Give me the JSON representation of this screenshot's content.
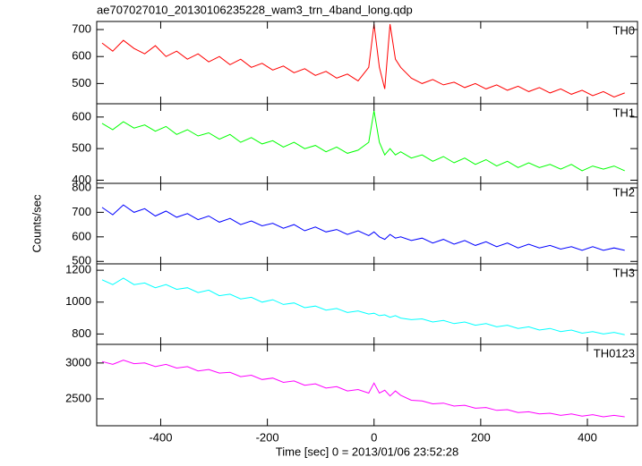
{
  "y_label": "Counts/sec",
  "x_label": "Time [sec] 0 = 2013/01/06 23:52:28",
  "chart_data": [
    {
      "type": "line",
      "title": "ae707027010_20130106235228_wam3_trn_4band_long.qdp",
      "xlim": [
        -520,
        494
      ],
      "ylim": [
        425,
        730
      ],
      "yticks": [
        500,
        600,
        700
      ],
      "x": [
        -510,
        -490,
        -470,
        -450,
        -430,
        -410,
        -390,
        -370,
        -350,
        -330,
        -310,
        -290,
        -270,
        -250,
        -230,
        -210,
        -190,
        -170,
        -150,
        -130,
        -110,
        -90,
        -70,
        -50,
        -30,
        -10,
        0,
        10,
        20,
        30,
        40,
        50,
        70,
        90,
        110,
        130,
        150,
        170,
        190,
        210,
        230,
        250,
        270,
        290,
        310,
        330,
        350,
        370,
        390,
        410,
        430,
        450,
        470
      ],
      "series": [
        {
          "name": "TH0",
          "color": "#ff0000",
          "values": [
            650,
            620,
            660,
            630,
            610,
            640,
            600,
            620,
            590,
            610,
            580,
            600,
            570,
            590,
            560,
            575,
            550,
            565,
            540,
            555,
            530,
            545,
            520,
            535,
            510,
            560,
            720,
            560,
            480,
            720,
            590,
            560,
            520,
            500,
            515,
            495,
            505,
            485,
            500,
            480,
            495,
            475,
            490,
            470,
            485,
            465,
            480,
            460,
            475,
            455,
            470,
            450,
            465
          ]
        }
      ]
    },
    {
      "type": "line",
      "xlim": [
        -520,
        494
      ],
      "ylim": [
        390,
        642
      ],
      "yticks": [
        400,
        500,
        600
      ],
      "x": [
        -510,
        -490,
        -470,
        -450,
        -430,
        -410,
        -390,
        -370,
        -350,
        -330,
        -310,
        -290,
        -270,
        -250,
        -230,
        -210,
        -190,
        -170,
        -150,
        -130,
        -110,
        -90,
        -70,
        -50,
        -30,
        -10,
        0,
        10,
        20,
        30,
        40,
        50,
        70,
        90,
        110,
        130,
        150,
        170,
        190,
        210,
        230,
        250,
        270,
        290,
        310,
        330,
        350,
        370,
        390,
        410,
        430,
        450,
        470
      ],
      "series": [
        {
          "name": "TH1",
          "color": "#00ff00",
          "values": [
            580,
            560,
            585,
            565,
            575,
            555,
            570,
            545,
            560,
            540,
            550,
            530,
            545,
            520,
            535,
            515,
            525,
            505,
            520,
            500,
            510,
            490,
            505,
            485,
            495,
            520,
            620,
            520,
            480,
            500,
            480,
            490,
            470,
            480,
            460,
            475,
            455,
            470,
            450,
            465,
            445,
            460,
            440,
            455,
            440,
            450,
            435,
            450,
            430,
            445,
            435,
            445,
            430
          ]
        }
      ]
    },
    {
      "type": "line",
      "xlim": [
        -520,
        494
      ],
      "ylim": [
        490,
        818
      ],
      "yticks": [
        500,
        600,
        700,
        800
      ],
      "x": [
        -510,
        -490,
        -470,
        -450,
        -430,
        -410,
        -390,
        -370,
        -350,
        -330,
        -310,
        -290,
        -270,
        -250,
        -230,
        -210,
        -190,
        -170,
        -150,
        -130,
        -110,
        -90,
        -70,
        -50,
        -30,
        -10,
        0,
        10,
        20,
        30,
        40,
        50,
        70,
        90,
        110,
        130,
        150,
        170,
        190,
        210,
        230,
        250,
        270,
        290,
        310,
        330,
        350,
        370,
        390,
        410,
        430,
        450,
        470
      ],
      "series": [
        {
          "name": "TH2",
          "color": "#0000ff",
          "values": [
            720,
            690,
            730,
            700,
            715,
            685,
            705,
            680,
            695,
            670,
            685,
            660,
            675,
            650,
            665,
            645,
            655,
            635,
            650,
            625,
            640,
            620,
            630,
            610,
            625,
            605,
            620,
            600,
            590,
            610,
            595,
            600,
            585,
            595,
            575,
            590,
            570,
            585,
            565,
            580,
            560,
            575,
            555,
            570,
            555,
            565,
            550,
            560,
            545,
            560,
            545,
            555,
            545
          ]
        }
      ]
    },
    {
      "type": "line",
      "xlim": [
        -520,
        494
      ],
      "ylim": [
        735,
        1240
      ],
      "yticks": [
        800,
        1000,
        1200
      ],
      "x": [
        -510,
        -490,
        -470,
        -450,
        -430,
        -410,
        -390,
        -370,
        -350,
        -330,
        -310,
        -290,
        -270,
        -250,
        -230,
        -210,
        -190,
        -170,
        -150,
        -130,
        -110,
        -90,
        -70,
        -50,
        -30,
        -10,
        0,
        10,
        20,
        30,
        40,
        50,
        70,
        90,
        110,
        130,
        150,
        170,
        190,
        210,
        230,
        250,
        270,
        290,
        310,
        330,
        350,
        370,
        390,
        410,
        430,
        450,
        470
      ],
      "series": [
        {
          "name": "TH3",
          "color": "#00ffff",
          "values": [
            1140,
            1110,
            1150,
            1110,
            1120,
            1090,
            1110,
            1080,
            1090,
            1060,
            1075,
            1040,
            1050,
            1020,
            1030,
            1000,
            1015,
            985,
            995,
            965,
            975,
            950,
            960,
            935,
            945,
            925,
            930,
            915,
            920,
            905,
            915,
            900,
            890,
            895,
            875,
            885,
            865,
            875,
            855,
            865,
            845,
            855,
            835,
            845,
            825,
            835,
            815,
            825,
            805,
            815,
            800,
            810,
            795
          ]
        }
      ]
    },
    {
      "type": "line",
      "xlim": [
        -520,
        494
      ],
      "ylim": [
        2125,
        3260
      ],
      "yticks": [
        2500,
        3000
      ],
      "xticks": [
        -400,
        -200,
        0,
        200,
        400
      ],
      "x": [
        -510,
        -490,
        -470,
        -450,
        -430,
        -410,
        -390,
        -370,
        -350,
        -330,
        -310,
        -290,
        -270,
        -250,
        -230,
        -210,
        -190,
        -170,
        -150,
        -130,
        -110,
        -90,
        -70,
        -50,
        -30,
        -10,
        0,
        10,
        20,
        30,
        40,
        50,
        70,
        90,
        110,
        130,
        150,
        170,
        190,
        210,
        230,
        250,
        270,
        290,
        310,
        330,
        350,
        370,
        390,
        410,
        430,
        450,
        470
      ],
      "series": [
        {
          "name": "TH0123",
          "color": "#ff00ff",
          "values": [
            3020,
            2980,
            3040,
            2990,
            3000,
            2950,
            2980,
            2930,
            2950,
            2890,
            2910,
            2860,
            2870,
            2810,
            2830,
            2770,
            2790,
            2730,
            2750,
            2690,
            2710,
            2650,
            2670,
            2610,
            2630,
            2580,
            2720,
            2580,
            2620,
            2540,
            2610,
            2550,
            2480,
            2470,
            2430,
            2440,
            2400,
            2410,
            2370,
            2380,
            2340,
            2350,
            2310,
            2320,
            2290,
            2300,
            2270,
            2290,
            2260,
            2280,
            2250,
            2270,
            2250
          ]
        }
      ]
    }
  ]
}
